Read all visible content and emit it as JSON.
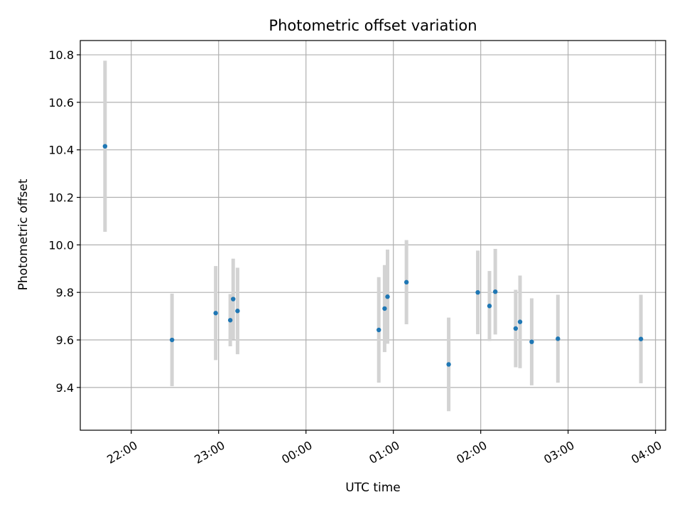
{
  "chart_data": {
    "type": "scatter",
    "title": "Photometric offset variation",
    "xlabel": "UTC time",
    "ylabel": "Photometric offset",
    "x_unit": "UTC clock time (HH:MM), axis spans midnight",
    "xlim": [
      "21:25",
      "04:07"
    ],
    "ylim": [
      9.22,
      10.86
    ],
    "x_ticks": [
      "22:00",
      "23:00",
      "00:00",
      "01:00",
      "02:00",
      "03:00",
      "04:00"
    ],
    "y_ticks": [
      9.4,
      9.6,
      9.8,
      10.0,
      10.2,
      10.4,
      10.6,
      10.8
    ],
    "y_tick_labels": [
      "9.4",
      "9.6",
      "9.8",
      "10.0",
      "10.2",
      "10.4",
      "10.6",
      "10.8"
    ],
    "grid": true,
    "marker_color": "#1f77b4",
    "errorbar_color": "#d3d3d3",
    "points": [
      {
        "x": "21:42",
        "y": 10.415,
        "err": 0.36
      },
      {
        "x": "22:28",
        "y": 9.6,
        "err": 0.195
      },
      {
        "x": "22:58",
        "y": 9.713,
        "err": 0.198
      },
      {
        "x": "23:08",
        "y": 9.683,
        "err": 0.11
      },
      {
        "x": "23:10",
        "y": 9.772,
        "err": 0.17
      },
      {
        "x": "23:13",
        "y": 9.722,
        "err": 0.182
      },
      {
        "x": "00:50",
        "y": 9.642,
        "err": 0.222
      },
      {
        "x": "00:54",
        "y": 9.732,
        "err": 0.183
      },
      {
        "x": "00:56",
        "y": 9.782,
        "err": 0.198
      },
      {
        "x": "01:09",
        "y": 9.843,
        "err": 0.177
      },
      {
        "x": "01:38",
        "y": 9.497,
        "err": 0.197
      },
      {
        "x": "01:58",
        "y": 9.8,
        "err": 0.176
      },
      {
        "x": "02:06",
        "y": 9.743,
        "err": 0.147
      },
      {
        "x": "02:10",
        "y": 9.803,
        "err": 0.18
      },
      {
        "x": "02:24",
        "y": 9.648,
        "err": 0.163
      },
      {
        "x": "02:27",
        "y": 9.676,
        "err": 0.195
      },
      {
        "x": "02:35",
        "y": 9.592,
        "err": 0.183
      },
      {
        "x": "02:53",
        "y": 9.605,
        "err": 0.185
      },
      {
        "x": "03:50",
        "y": 9.604,
        "err": 0.186
      }
    ]
  }
}
